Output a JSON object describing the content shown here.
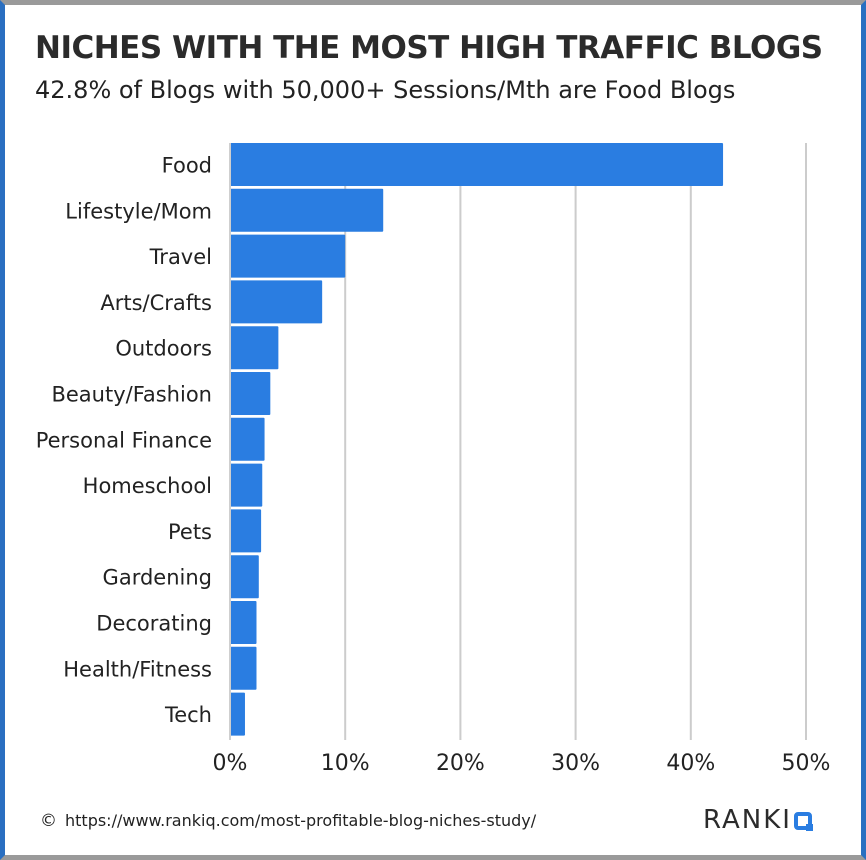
{
  "header": {
    "title": "NICHES WITH THE MOST HIGH TRAFFIC BLOGS",
    "subtitle": "42.8% of Blogs with 50,000+ Sessions/Mth are Food Blogs"
  },
  "footer": {
    "copyright_symbol": "©",
    "source_url": "https://www.rankiq.com/most-profitable-blog-niches-study/",
    "brand_text": "RANKI"
  },
  "colors": {
    "bar": "#2a7de1",
    "grid": "#cccccc",
    "frame_side": "#2a6fc1",
    "frame_top": "#9a9a9a"
  },
  "chart_data": {
    "type": "bar",
    "orientation": "horizontal",
    "title": "NICHES WITH THE MOST HIGH TRAFFIC BLOGS",
    "subtitle": "42.8% of Blogs with 50,000+ Sessions/Mth are Food Blogs",
    "categories": [
      "Food",
      "Lifestyle/Mom",
      "Travel",
      "Arts/Crafts",
      "Outdoors",
      "Beauty/Fashion",
      "Personal Finance",
      "Homeschool",
      "Pets",
      "Gardening",
      "Decorating",
      "Health/Fitness",
      "Tech"
    ],
    "values": [
      42.8,
      13.3,
      10.0,
      8.0,
      4.2,
      3.5,
      3.0,
      2.8,
      2.7,
      2.5,
      2.3,
      2.3,
      1.3
    ],
    "unit": "%",
    "xlim": [
      0,
      50
    ],
    "x_ticks": [
      "0%",
      "10%",
      "20%",
      "30%",
      "40%",
      "50%"
    ],
    "grid": true,
    "legend": "none"
  }
}
